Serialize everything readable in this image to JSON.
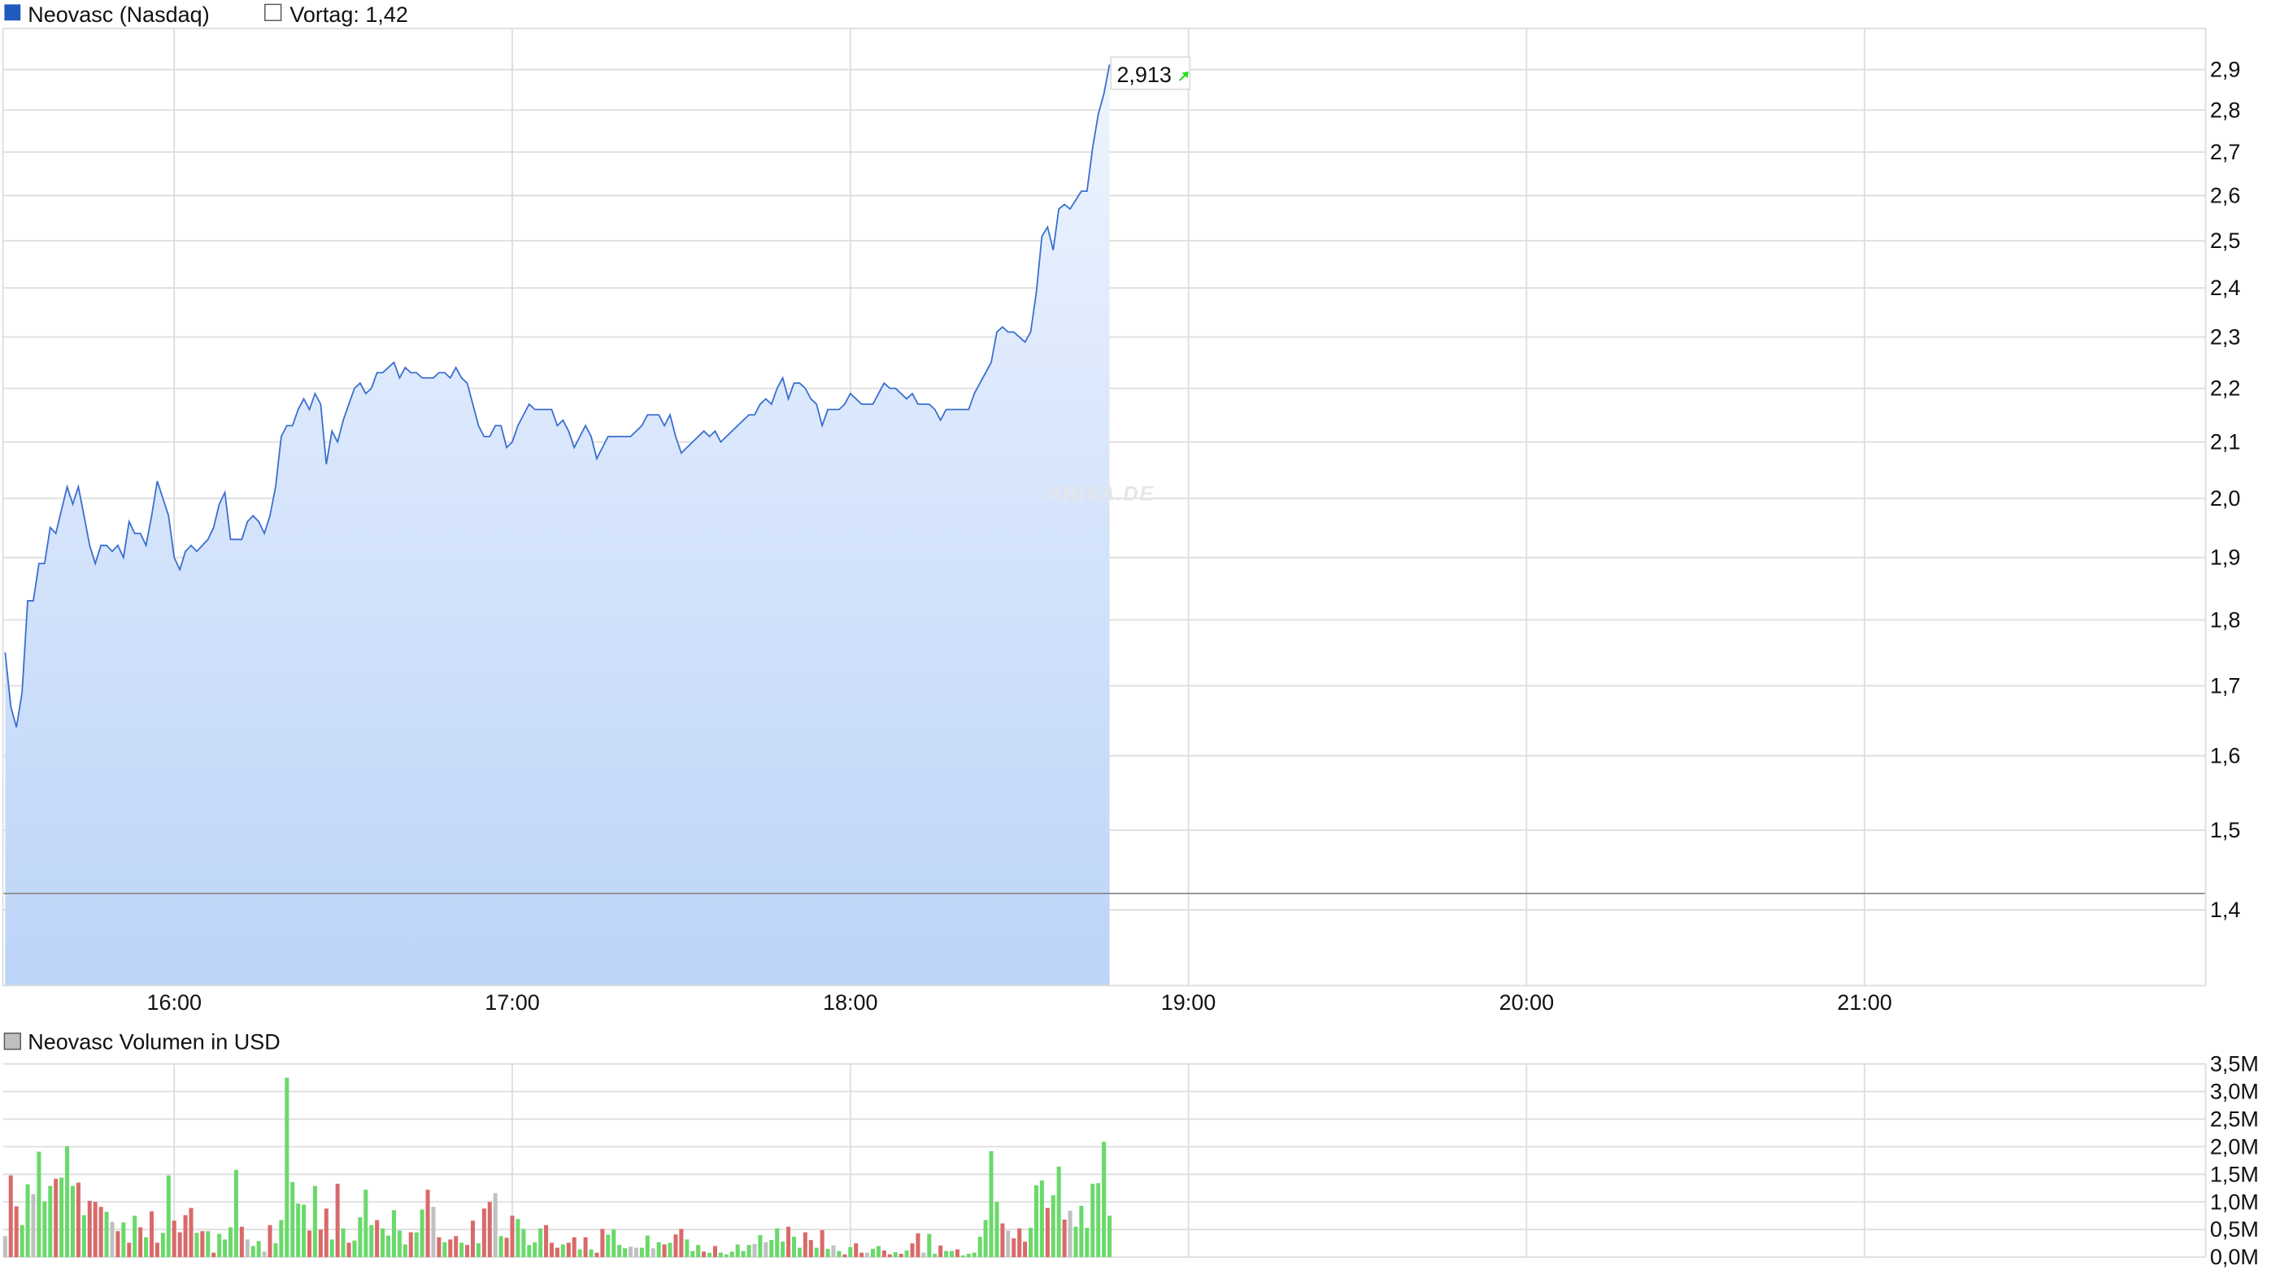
{
  "legend": {
    "series_label": "Neovasc (Nasdaq)",
    "previous_close_label": "Vortag: 1,42",
    "volume_label": "Neovasc Volumen in USD"
  },
  "tooltip": {
    "value": "2,913",
    "icon": "arrow-up-right-icon"
  },
  "watermark": "ARIVA.DE",
  "colors": {
    "line": "#3a6fd0",
    "fill_top": "#eef4fe",
    "fill_bottom": "#bcd4f8",
    "series_square": "#1f5bbf",
    "previous_close_line": "#8a8a8a",
    "volume_up": "#6ad96a",
    "volume_down": "#d96a6a",
    "volume_flat": "#c0c0c0",
    "arrow": "#22dd22"
  },
  "chart_data": [
    {
      "type": "area",
      "scale": "log",
      "ylim": [
        1.311,
        3.005
      ],
      "xlim": [
        "15:30",
        "22:00"
      ],
      "grid": true,
      "previous_close": 1.42,
      "last_value": 2.913,
      "x_ticks": [
        "16:00",
        "17:00",
        "18:00",
        "19:00",
        "20:00",
        "21:00"
      ],
      "y_ticks": [
        {
          "v": 2.9,
          "label": "2,9"
        },
        {
          "v": 2.8,
          "label": "2,8"
        },
        {
          "v": 2.7,
          "label": "2,7"
        },
        {
          "v": 2.6,
          "label": "2,6"
        },
        {
          "v": 2.5,
          "label": "2,5"
        },
        {
          "v": 2.4,
          "label": "2,4"
        },
        {
          "v": 2.3,
          "label": "2,3"
        },
        {
          "v": 2.2,
          "label": "2,2"
        },
        {
          "v": 2.1,
          "label": "2,1"
        },
        {
          "v": 2.0,
          "label": "2,0"
        },
        {
          "v": 1.9,
          "label": "1,9"
        },
        {
          "v": 1.8,
          "label": "1,8"
        },
        {
          "v": 1.7,
          "label": "1,7"
        },
        {
          "v": 1.6,
          "label": "1,6"
        },
        {
          "v": 1.5,
          "label": "1,5"
        },
        {
          "v": 1.4,
          "label": "1,4"
        }
      ],
      "x": [
        "15:30",
        "15:31",
        "15:32",
        "15:33",
        "15:34",
        "15:35",
        "15:36",
        "15:37",
        "15:38",
        "15:39",
        "15:40",
        "15:41",
        "15:42",
        "15:43",
        "15:44",
        "15:45",
        "15:46",
        "15:47",
        "15:48",
        "15:49",
        "15:50",
        "15:51",
        "15:52",
        "15:53",
        "15:54",
        "15:55",
        "15:56",
        "15:57",
        "15:58",
        "15:59",
        "16:00",
        "16:01",
        "16:02",
        "16:03",
        "16:04",
        "16:05",
        "16:06",
        "16:07",
        "16:08",
        "16:09",
        "16:10",
        "16:11",
        "16:12",
        "16:13",
        "16:14",
        "16:15",
        "16:16",
        "16:17",
        "16:18",
        "16:19",
        "16:20",
        "16:21",
        "16:22",
        "16:23",
        "16:24",
        "16:25",
        "16:26",
        "16:27",
        "16:28",
        "16:29",
        "16:30",
        "16:31",
        "16:32",
        "16:33",
        "16:34",
        "16:35",
        "16:36",
        "16:37",
        "16:38",
        "16:39",
        "16:40",
        "16:41",
        "16:42",
        "16:43",
        "16:44",
        "16:45",
        "16:46",
        "16:47",
        "16:48",
        "16:49",
        "16:50",
        "16:51",
        "16:52",
        "16:53",
        "16:54",
        "16:55",
        "16:56",
        "16:57",
        "16:58",
        "16:59",
        "17:00",
        "17:01",
        "17:02",
        "17:03",
        "17:04",
        "17:05",
        "17:06",
        "17:07",
        "17:08",
        "17:09",
        "17:10",
        "17:11",
        "17:12",
        "17:13",
        "17:14",
        "17:15",
        "17:16",
        "17:17",
        "17:18",
        "17:19",
        "17:20",
        "17:21",
        "17:22",
        "17:23",
        "17:24",
        "17:25",
        "17:26",
        "17:27",
        "17:28",
        "17:29",
        "17:30",
        "17:31",
        "17:32",
        "17:33",
        "17:34",
        "17:35",
        "17:36",
        "17:37",
        "17:38",
        "17:39",
        "17:40",
        "17:41",
        "17:42",
        "17:43",
        "17:44",
        "17:45",
        "17:46",
        "17:47",
        "17:48",
        "17:49",
        "17:50",
        "17:51",
        "17:52",
        "17:53",
        "17:54",
        "17:55",
        "17:56",
        "17:57",
        "17:58",
        "17:59",
        "18:00",
        "18:01",
        "18:02",
        "18:03",
        "18:04",
        "18:05",
        "18:06",
        "18:07",
        "18:08",
        "18:09",
        "18:10",
        "18:11",
        "18:12",
        "18:13",
        "18:14",
        "18:15",
        "18:16",
        "18:17",
        "18:18",
        "18:19",
        "18:20",
        "18:21",
        "18:22",
        "18:23",
        "18:24",
        "18:25",
        "18:26",
        "18:27",
        "18:28",
        "18:29",
        "18:30",
        "18:31",
        "18:32",
        "18:33",
        "18:34",
        "18:35",
        "18:36",
        "18:37",
        "18:38",
        "18:39",
        "18:40",
        "18:41",
        "18:42",
        "18:43",
        "18:44",
        "18:45",
        "18:46"
      ],
      "values": [
        1.75,
        1.67,
        1.64,
        1.69,
        1.83,
        1.83,
        1.89,
        1.89,
        1.95,
        1.94,
        1.98,
        2.02,
        1.99,
        2.02,
        1.97,
        1.92,
        1.89,
        1.92,
        1.92,
        1.91,
        1.92,
        1.9,
        1.96,
        1.94,
        1.94,
        1.92,
        1.97,
        2.03,
        2.0,
        1.97,
        1.9,
        1.88,
        1.91,
        1.92,
        1.91,
        1.92,
        1.93,
        1.95,
        1.99,
        2.01,
        1.93,
        1.93,
        1.93,
        1.96,
        1.97,
        1.96,
        1.94,
        1.97,
        2.02,
        2.11,
        2.13,
        2.13,
        2.16,
        2.18,
        2.16,
        2.19,
        2.17,
        2.06,
        2.12,
        2.1,
        2.14,
        2.17,
        2.2,
        2.21,
        2.19,
        2.2,
        2.23,
        2.23,
        2.24,
        2.25,
        2.22,
        2.24,
        2.23,
        2.23,
        2.22,
        2.22,
        2.22,
        2.23,
        2.23,
        2.22,
        2.24,
        2.22,
        2.21,
        2.17,
        2.13,
        2.11,
        2.11,
        2.13,
        2.13,
        2.09,
        2.1,
        2.13,
        2.15,
        2.17,
        2.16,
        2.16,
        2.16,
        2.16,
        2.13,
        2.14,
        2.12,
        2.09,
        2.11,
        2.13,
        2.11,
        2.07,
        2.09,
        2.11,
        2.11,
        2.11,
        2.11,
        2.11,
        2.12,
        2.13,
        2.15,
        2.15,
        2.15,
        2.13,
        2.15,
        2.11,
        2.08,
        2.09,
        2.1,
        2.11,
        2.12,
        2.11,
        2.12,
        2.1,
        2.11,
        2.12,
        2.13,
        2.14,
        2.15,
        2.15,
        2.17,
        2.18,
        2.17,
        2.2,
        2.22,
        2.18,
        2.21,
        2.21,
        2.2,
        2.18,
        2.17,
        2.13,
        2.16,
        2.16,
        2.16,
        2.17,
        2.19,
        2.18,
        2.17,
        2.17,
        2.17,
        2.19,
        2.21,
        2.2,
        2.2,
        2.19,
        2.18,
        2.19,
        2.17,
        2.17,
        2.17,
        2.16,
        2.14,
        2.16,
        2.16,
        2.16,
        2.16,
        2.16,
        2.19,
        2.21,
        2.23,
        2.25,
        2.31,
        2.32,
        2.31,
        2.31,
        2.3,
        2.29,
        2.31,
        2.39,
        2.51,
        2.53,
        2.48,
        2.57,
        2.58,
        2.57,
        2.59,
        2.61,
        2.61,
        2.71,
        2.79,
        2.84,
        2.913
      ]
    },
    {
      "type": "bar",
      "title": "Neovasc Volumen in USD",
      "unit": "M",
      "ylim": [
        0,
        3.5
      ],
      "grid": true,
      "y_ticks": [
        {
          "v": 3.5,
          "label": "3,5M"
        },
        {
          "v": 3.0,
          "label": "3,0M"
        },
        {
          "v": 2.5,
          "label": "2,5M"
        },
        {
          "v": 2.0,
          "label": "2,0M"
        },
        {
          "v": 1.5,
          "label": "1,5M"
        },
        {
          "v": 1.0,
          "label": "1,0M"
        },
        {
          "v": 0.5,
          "label": "0,5M"
        },
        {
          "v": 0.0,
          "label": "0,0M"
        }
      ],
      "values": [
        0.38,
        1.48,
        0.92,
        0.58,
        1.32,
        1.14,
        1.91,
        1.01,
        1.29,
        1.42,
        1.44,
        2.01,
        1.29,
        1.35,
        0.76,
        1.02,
        1.0,
        0.91,
        0.82,
        0.64,
        0.47,
        0.63,
        0.26,
        0.75,
        0.54,
        0.36,
        0.83,
        0.26,
        0.44,
        1.48,
        0.66,
        0.45,
        0.76,
        0.89,
        0.44,
        0.47,
        0.47,
        0.08,
        0.42,
        0.32,
        0.54,
        1.58,
        0.55,
        0.32,
        0.2,
        0.29,
        0.1,
        0.58,
        0.25,
        0.67,
        3.25,
        1.36,
        0.97,
        0.95,
        0.48,
        1.29,
        0.5,
        0.88,
        0.32,
        1.33,
        0.52,
        0.26,
        0.3,
        0.72,
        1.22,
        0.58,
        0.67,
        0.52,
        0.39,
        0.85,
        0.48,
        0.23,
        0.45,
        0.45,
        0.86,
        1.22,
        0.91,
        0.36,
        0.27,
        0.32,
        0.38,
        0.26,
        0.22,
        0.66,
        0.25,
        0.88,
        1.0,
        1.16,
        0.38,
        0.35,
        0.75,
        0.69,
        0.51,
        0.22,
        0.27,
        0.52,
        0.58,
        0.26,
        0.17,
        0.23,
        0.26,
        0.36,
        0.14,
        0.36,
        0.14,
        0.08,
        0.51,
        0.41,
        0.5,
        0.22,
        0.16,
        0.19,
        0.17,
        0.17,
        0.39,
        0.16,
        0.27,
        0.23,
        0.26,
        0.41,
        0.51,
        0.32,
        0.11,
        0.22,
        0.1,
        0.08,
        0.2,
        0.08,
        0.05,
        0.1,
        0.23,
        0.11,
        0.22,
        0.24,
        0.4,
        0.27,
        0.31,
        0.52,
        0.28,
        0.55,
        0.37,
        0.17,
        0.45,
        0.31,
        0.17,
        0.49,
        0.15,
        0.21,
        0.11,
        0.05,
        0.18,
        0.25,
        0.08,
        0.08,
        0.15,
        0.2,
        0.12,
        0.05,
        0.09,
        0.06,
        0.12,
        0.25,
        0.43,
        0.08,
        0.42,
        0.06,
        0.21,
        0.11,
        0.11,
        0.14,
        0.03,
        0.06,
        0.08,
        0.37,
        0.67,
        1.92,
        1.0,
        0.61,
        0.48,
        0.34,
        0.52,
        0.28,
        0.53,
        1.3,
        1.39,
        0.89,
        1.12,
        1.64,
        0.68,
        0.84,
        0.55,
        0.93,
        0.53,
        1.33,
        1.34,
        2.09,
        0.75
      ],
      "direction": [
        "flat",
        "down",
        "down",
        "up",
        "up",
        "flat",
        "up",
        "up",
        "up",
        "down",
        "up",
        "up",
        "up",
        "down",
        "up",
        "down",
        "down",
        "down",
        "up",
        "flat",
        "down",
        "up",
        "down",
        "up",
        "down",
        "up",
        "down",
        "down",
        "up",
        "up",
        "down",
        "down",
        "down",
        "down",
        "up",
        "down",
        "up",
        "down",
        "up",
        "up",
        "up",
        "up",
        "down",
        "flat",
        "up",
        "up",
        "flat",
        "down",
        "up",
        "up",
        "up",
        "up",
        "up",
        "up",
        "down",
        "up",
        "down",
        "down",
        "up",
        "down",
        "up",
        "down",
        "up",
        "up",
        "up",
        "up",
        "down",
        "up",
        "up",
        "up",
        "up",
        "up",
        "down",
        "up",
        "up",
        "down",
        "flat",
        "down",
        "up",
        "down",
        "down",
        "up",
        "down",
        "down",
        "up",
        "down",
        "down",
        "flat",
        "up",
        "down",
        "down",
        "up",
        "up",
        "up",
        "up",
        "up",
        "down",
        "down",
        "down",
        "up",
        "down",
        "down",
        "up",
        "down",
        "up",
        "down",
        "down",
        "up",
        "up",
        "up",
        "up",
        "flat",
        "flat",
        "up",
        "up",
        "flat",
        "up",
        "down",
        "up",
        "down",
        "down",
        "up",
        "up",
        "up",
        "down",
        "up",
        "down",
        "up",
        "up",
        "up",
        "up",
        "up",
        "up",
        "flat",
        "up",
        "flat",
        "up",
        "up",
        "up",
        "down",
        "up",
        "up",
        "down",
        "down",
        "up",
        "down",
        "up",
        "flat",
        "up",
        "down",
        "up",
        "down",
        "down",
        "flat",
        "up",
        "up",
        "down",
        "down",
        "up",
        "down",
        "up",
        "down",
        "down",
        "flat",
        "up",
        "up",
        "down",
        "up",
        "up",
        "down",
        "up",
        "up",
        "up",
        "up",
        "up",
        "up",
        "up",
        "down",
        "flat",
        "down",
        "down",
        "down",
        "up",
        "up",
        "up",
        "down",
        "up",
        "up",
        "down",
        "flat",
        "up",
        "up",
        "up",
        "up",
        "up",
        "up",
        "up"
      ]
    }
  ]
}
